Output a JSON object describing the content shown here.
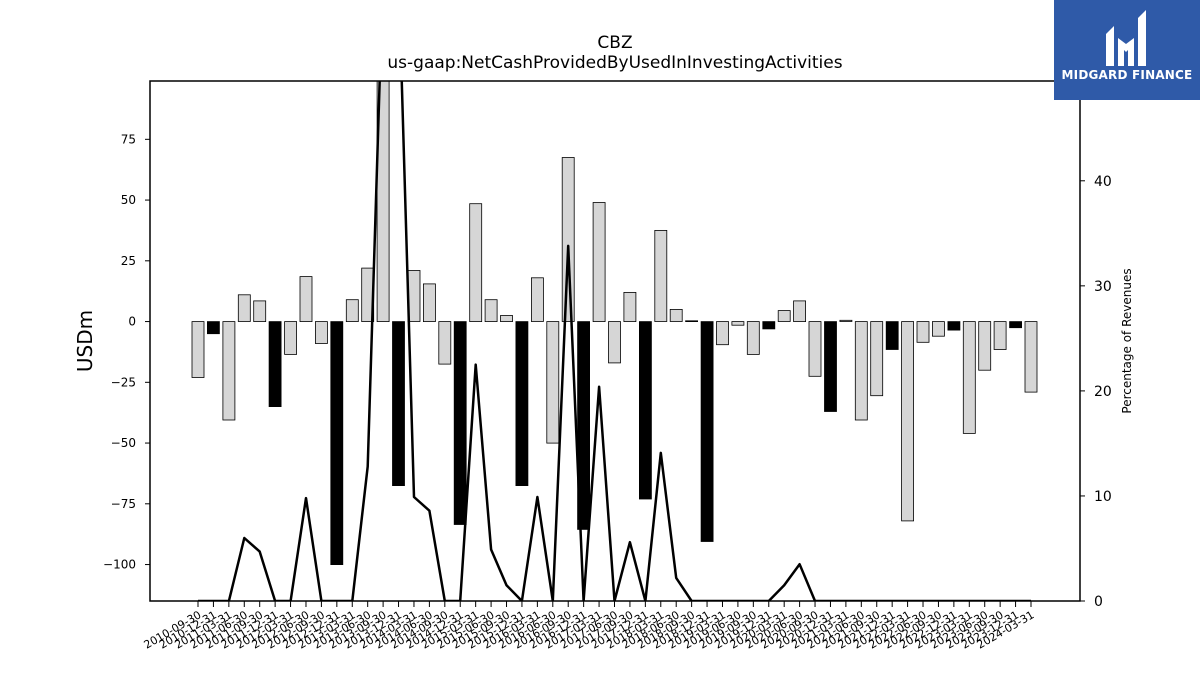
{
  "chart_data": {
    "type": "bar+line",
    "title": "CBZ",
    "subtitle": "us-gaap:NetCashProvidedByUsedInInvestingActivities",
    "ylabel": "USDm",
    "y2label": "Percentage of Revenues",
    "ylim": [
      -115,
      99
    ],
    "y2lim": [
      0,
      49.5
    ],
    "yticks": [
      -100,
      -75,
      -50,
      -25,
      0,
      25,
      50,
      75
    ],
    "y2ticks": [
      0,
      10,
      20,
      30,
      40
    ],
    "categories": [
      "2010-09-30",
      "2010-12-31",
      "2011-03-31",
      "2011-06-30",
      "2011-09-30",
      "2011-12-31",
      "2012-03-31",
      "2012-06-30",
      "2012-09-30",
      "2012-12-31",
      "2013-03-31",
      "2013-06-30",
      "2013-09-30",
      "2013-12-31",
      "2014-03-31",
      "2014-06-30",
      "2014-09-30",
      "2014-12-31",
      "2015-03-31",
      "2015-06-30",
      "2015-09-30",
      "2015-12-31",
      "2016-03-31",
      "2016-06-30",
      "2016-09-30",
      "2016-12-31",
      "2017-03-31",
      "2017-06-30",
      "2017-09-30",
      "2017-12-31",
      "2018-03-31",
      "2018-06-30",
      "2018-09-30",
      "2018-12-31",
      "2019-03-31",
      "2019-06-30",
      "2019-09-30",
      "2019-12-31",
      "2020-03-31",
      "2020-06-30",
      "2020-09-30",
      "2020-12-31",
      "2021-03-31",
      "2021-06-30",
      "2021-09-30",
      "2021-12-31",
      "2022-03-31",
      "2022-06-30",
      "2022-09-30",
      "2022-12-31",
      "2023-03-31",
      "2023-06-30",
      "2023-09-30",
      "2023-12-31",
      "2024-03-31"
    ],
    "tick_labels": [
      "2010-09-30",
      "2010-12-31",
      "2011-03-31",
      "2011-06-30",
      "2011-09-30",
      "2011-12-31",
      "2012-03-31",
      "2012-06-30",
      "2012-09-30",
      "2012-12-31",
      "2013-03-31",
      "2013-06-30",
      "2013-09-30",
      "2013-12-31",
      "2014-03-31",
      "2014-06-30",
      "2014-09-30",
      "2014-12-31",
      "2015-03-31",
      "2015-06-30",
      "2015-09-30",
      "2015-12-31",
      "2016-03-31",
      "2016-06-30",
      "2016-09-30",
      "2016-12-31",
      "2017-03-31",
      "2017-06-30",
      "2017-09-30",
      "2017-12-31",
      "2018-03-31",
      "2018-06-30",
      "2018-09-30",
      "2018-12-31",
      "2019-03-31",
      "2019-06-30",
      "2019-09-30",
      "2019-12-31",
      "2020-03-31",
      "2020-06-30",
      "2020-09-30",
      "2020-12-31",
      "2021-03-31",
      "2021-06-30",
      "2021-09-30",
      "2021-12-31",
      "2022-03-31",
      "2022-06-30",
      "2022-09-30",
      "2022-12-31",
      "2023-03-31",
      "2023-06-30",
      "2023-09-30",
      "2023-12-31",
      "2024-03-31"
    ],
    "bars": [
      -23,
      -5,
      -40.5,
      11,
      8.5,
      -35,
      -13.5,
      18.5,
      -9,
      -100,
      9,
      22,
      99,
      -67.5,
      21,
      15.5,
      -17.5,
      -83.5,
      48.5,
      9,
      2.5,
      -67.5,
      18,
      -50,
      67.5,
      -85.5,
      49,
      -17,
      12,
      -73,
      37.5,
      5,
      0.3,
      -90.5,
      -9.5,
      -1.5,
      -13.5,
      -3,
      4.5,
      8.5,
      -22.5,
      -37,
      0.5,
      -40.5,
      -30.5,
      -11.5,
      -82,
      -8.5,
      -6,
      -3.5,
      -46,
      -20,
      -11.5,
      -2.5,
      -29
    ],
    "bar_fill": [
      "light",
      "dark",
      "light",
      "light",
      "light",
      "dark",
      "light",
      "light",
      "light",
      "dark",
      "light",
      "light",
      "light",
      "dark",
      "light",
      "light",
      "light",
      "dark",
      "light",
      "light",
      "light",
      "dark",
      "light",
      "light",
      "light",
      "dark",
      "light",
      "light",
      "light",
      "dark",
      "light",
      "light",
      "light",
      "dark",
      "light",
      "light",
      "light",
      "dark",
      "light",
      "light",
      "light",
      "dark",
      "light",
      "light",
      "light",
      "dark",
      "light",
      "light",
      "light",
      "dark",
      "light",
      "light",
      "light",
      "dark",
      "light"
    ],
    "line": [
      0,
      0,
      0,
      6,
      4.7,
      0,
      0,
      9.8,
      0,
      0,
      0,
      12.8,
      60,
      60,
      9.9,
      8.6,
      0,
      0,
      22.5,
      4.9,
      1.5,
      0,
      9.9,
      0,
      33.8,
      0,
      20.4,
      0,
      5.6,
      0,
      14.1,
      2.2,
      0,
      0,
      0,
      0,
      0,
      0,
      1.5,
      3.5,
      0,
      0,
      0,
      0,
      0,
      0,
      0,
      0,
      0,
      0,
      0,
      0,
      0,
      0,
      0
    ],
    "colors": {
      "light": "#d6d6d6",
      "dark": "#000000",
      "edge": "#000000",
      "line": "#000000"
    }
  },
  "logo": {
    "text": "MIDGARD FINANCE",
    "bg": "#2f5aa8"
  }
}
